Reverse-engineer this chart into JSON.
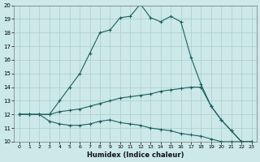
{
  "xlabel": "Humidex (Indice chaleur)",
  "bg_color": "#cce8e8",
  "grid_color": "#aacece",
  "line_color": "#1a6060",
  "xlim": [
    -0.5,
    23.5
  ],
  "ylim": [
    10,
    20
  ],
  "xticks": [
    0,
    1,
    2,
    3,
    4,
    5,
    6,
    7,
    8,
    9,
    10,
    11,
    12,
    13,
    14,
    15,
    16,
    17,
    18,
    19,
    20,
    21,
    22,
    23
  ],
  "yticks": [
    10,
    11,
    12,
    13,
    14,
    15,
    16,
    17,
    18,
    19,
    20
  ],
  "line1_x": [
    0,
    1,
    2,
    3,
    4,
    5,
    6,
    7,
    8,
    9,
    10,
    11,
    12,
    13,
    14,
    15,
    16,
    17,
    18,
    19,
    20,
    21,
    22,
    23
  ],
  "line1_y": [
    12,
    12,
    12,
    12,
    13,
    14,
    15,
    16.5,
    18,
    18.2,
    19.1,
    19.2,
    20.1,
    19.1,
    18.8,
    19.2,
    18.8,
    16.2,
    14.2,
    12.6,
    11.6,
    10.8,
    10.0,
    10.0
  ],
  "line2_x": [
    0,
    1,
    2,
    3,
    4,
    5,
    6,
    7,
    8,
    9,
    10,
    11,
    12,
    13,
    14,
    15,
    16,
    17,
    18,
    19,
    20,
    21,
    22,
    23
  ],
  "line2_y": [
    12,
    12,
    12,
    12,
    12.2,
    12.3,
    12.4,
    12.6,
    12.8,
    13.0,
    13.2,
    13.3,
    13.4,
    13.5,
    13.7,
    13.8,
    13.9,
    14.0,
    14.0,
    12.6,
    11.6,
    10.8,
    10.0,
    10.0
  ],
  "line3_x": [
    0,
    1,
    2,
    3,
    4,
    5,
    6,
    7,
    8,
    9,
    10,
    11,
    12,
    13,
    14,
    15,
    16,
    17,
    18,
    19,
    20,
    21,
    22,
    23
  ],
  "line3_y": [
    12,
    12,
    12,
    11.5,
    11.3,
    11.2,
    11.2,
    11.3,
    11.5,
    11.6,
    11.4,
    11.3,
    11.2,
    11.0,
    10.9,
    10.8,
    10.6,
    10.5,
    10.4,
    10.2,
    10.0,
    10.0,
    10.0,
    10.0
  ]
}
